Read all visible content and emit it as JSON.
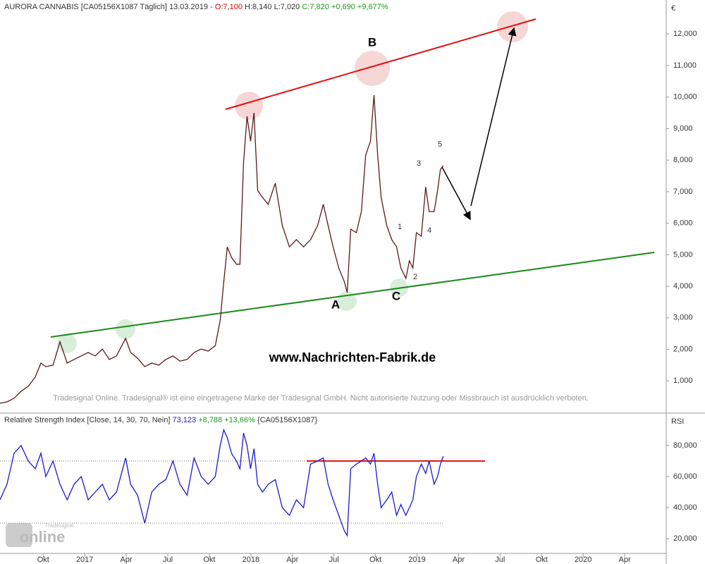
{
  "chart_data": [
    {
      "type": "line",
      "title": "AURORA CANNABIS [CA05156X1087 Täglich] 13.03.2019 -",
      "open_label": "O:7,100",
      "high_low_label": "H:8,140 L:7,020",
      "close_label": "C:7,820 +0,690 +9,677%",
      "unit": "€",
      "watermark": "www.Nachrichten-Fabrik.de",
      "disclaimer": "Tradesignal Online. Tradesignal® ist eine eingetragene Marke der Tradesignal GmbH. Nicht autorisierte Nutzung oder Missbrauch ist ausdrücklich verboten.",
      "annotations": [
        "B",
        "A",
        "C",
        "1",
        "2",
        "3",
        "4",
        "5"
      ],
      "color": "#5a1a1a",
      "x": [
        2016.49,
        2016.532,
        2016.575,
        2016.617,
        2016.66,
        2016.702,
        2016.736,
        2016.766,
        2016.809,
        2016.851,
        2016.894,
        2016.936,
        2016.979,
        2017.021,
        2017.063,
        2017.106,
        2017.148,
        2017.191,
        2017.246,
        2017.276,
        2017.318,
        2017.361,
        2017.403,
        2017.446,
        2017.488,
        2017.531,
        2017.573,
        2017.616,
        2017.658,
        2017.701,
        2017.743,
        2017.786,
        2017.815,
        2017.837,
        2017.858,
        2017.883,
        2017.913,
        2017.934,
        2017.956,
        2017.977,
        2017.998,
        2018.019,
        2018.041,
        2018.07,
        2018.104,
        2018.147,
        2018.189,
        2018.232,
        2018.274,
        2018.317,
        2018.359,
        2018.402,
        2018.436,
        2018.465,
        2018.495,
        2018.529,
        2018.563,
        2018.58,
        2018.601,
        2018.635,
        2018.665,
        2018.691,
        2018.72,
        2018.741,
        2018.763,
        2018.784,
        2018.818,
        2018.848,
        2018.877,
        2018.903,
        2018.933,
        2018.954,
        2018.975,
        2018.996,
        2019.026,
        2019.052,
        2019.073,
        2019.103,
        2019.124,
        2019.141,
        2019.158
      ],
      "values": [
        290,
        335,
        450,
        670,
        830,
        1120,
        1565,
        1450,
        1500,
        2240,
        1565,
        1680,
        1790,
        1900,
        1790,
        2010,
        1680,
        1790,
        2350,
        1900,
        1720,
        1450,
        1565,
        1500,
        1680,
        1790,
        1630,
        1680,
        1900,
        2010,
        1945,
        2120,
        2910,
        4140,
        5250,
        4920,
        4700,
        4700,
        7940,
        9390,
        8600,
        9500,
        7040,
        6820,
        6600,
        7270,
        5930,
        5250,
        5480,
        5250,
        5480,
        5930,
        6600,
        5930,
        5250,
        4580,
        4140,
        3800,
        5810,
        5700,
        6370,
        8160,
        8600,
        10060,
        8160,
        6820,
        5930,
        5480,
        5250,
        4580,
        4250,
        4810,
        4580,
        5700,
        5590,
        7150,
        6370,
        6370,
        7040,
        7710,
        7820
      ],
      "xlim": [
        2016.49,
        2020.5
      ],
      "xticks": [
        {
          "value": 2016.75,
          "label": "Okt"
        },
        2017,
        {
          "value": 2017.25,
          "label": "Apr"
        },
        {
          "value": 2017.5,
          "label": "Jul"
        },
        {
          "value": 2017.75,
          "label": "Okt"
        },
        2018,
        {
          "value": 2018.25,
          "label": "Apr"
        },
        {
          "value": 2018.5,
          "label": "Jul"
        },
        {
          "value": 2018.75,
          "label": "Okt"
        },
        2019,
        {
          "value": 2019.25,
          "label": "Apr"
        },
        {
          "value": 2019.5,
          "label": "Jul"
        },
        {
          "value": 2019.75,
          "label": "Okt"
        },
        2020,
        {
          "value": 2020.25,
          "label": "Apr"
        }
      ],
      "ylim": [
        0,
        12900
      ],
      "yticks": [
        {
          "value": 1000,
          "label": "1,000"
        },
        {
          "value": 2000,
          "label": "2,000"
        },
        {
          "value": 3000,
          "label": "3,000"
        },
        {
          "value": 4000,
          "label": "4,000"
        },
        {
          "value": 5000,
          "label": "5,000"
        },
        {
          "value": 6000,
          "label": "6,000"
        },
        {
          "value": 7000,
          "label": "7,000"
        },
        {
          "value": 8000,
          "label": "8,000"
        },
        {
          "value": 9000,
          "label": "9,000"
        },
        {
          "value": 10000,
          "label": "10,000"
        },
        {
          "value": 11000,
          "label": "11,000"
        },
        {
          "value": 12000,
          "label": "12,000"
        }
      ]
    },
    {
      "type": "line",
      "title": "Relative Strength Index [Close, 14, 30, 70, Nein]",
      "last_label": "73,123",
      "change_label": "+8,788 +13,66%",
      "symbol_label": "{CA05156X1087}",
      "unit": "RSI",
      "logo": "online",
      "logo_small": "Tradesignal",
      "color": "#1a1ad0",
      "levels": [
        30,
        70
      ],
      "x": [
        2016.49,
        2016.532,
        2016.575,
        2016.617,
        2016.66,
        2016.702,
        2016.736,
        2016.766,
        2016.809,
        2016.851,
        2016.894,
        2016.936,
        2016.979,
        2017.021,
        2017.063,
        2017.106,
        2017.148,
        2017.191,
        2017.246,
        2017.276,
        2017.318,
        2017.361,
        2017.403,
        2017.446,
        2017.488,
        2017.531,
        2017.573,
        2017.616,
        2017.658,
        2017.701,
        2017.743,
        2017.786,
        2017.815,
        2017.837,
        2017.858,
        2017.883,
        2017.913,
        2017.934,
        2017.956,
        2017.977,
        2017.998,
        2018.019,
        2018.041,
        2018.07,
        2018.104,
        2018.147,
        2018.189,
        2018.232,
        2018.274,
        2018.317,
        2018.359,
        2018.402,
        2018.436,
        2018.465,
        2018.495,
        2018.529,
        2018.563,
        2018.58,
        2018.601,
        2018.635,
        2018.665,
        2018.691,
        2018.72,
        2018.741,
        2018.763,
        2018.784,
        2018.818,
        2018.848,
        2018.877,
        2018.903,
        2018.933,
        2018.954,
        2018.975,
        2018.996,
        2019.026,
        2019.052,
        2019.073,
        2019.103,
        2019.124,
        2019.141,
        2019.158
      ],
      "values": [
        45,
        55,
        75,
        80,
        70,
        65,
        75,
        60,
        70,
        55,
        45,
        55,
        60,
        45,
        50,
        55,
        45,
        50,
        72,
        55,
        48,
        30,
        50,
        55,
        58,
        70,
        55,
        48,
        72,
        60,
        55,
        60,
        80,
        90,
        85,
        75,
        70,
        65,
        88,
        80,
        65,
        78,
        55,
        50,
        55,
        58,
        40,
        35,
        45,
        40,
        68,
        70,
        72,
        55,
        45,
        35,
        25,
        22,
        65,
        68,
        70,
        72,
        68,
        75,
        55,
        40,
        45,
        50,
        35,
        42,
        35,
        40,
        45,
        60,
        68,
        62,
        70,
        55,
        60,
        68,
        73.123
      ],
      "xlim": [
        2016.49,
        2020.5
      ],
      "ylim": [
        10.5,
        99
      ],
      "yticks": [
        {
          "value": 20,
          "label": "20,000"
        },
        {
          "value": 40,
          "label": "40,000"
        },
        {
          "value": 60,
          "label": "60,000"
        },
        {
          "value": 80,
          "label": "80,000"
        }
      ]
    }
  ]
}
